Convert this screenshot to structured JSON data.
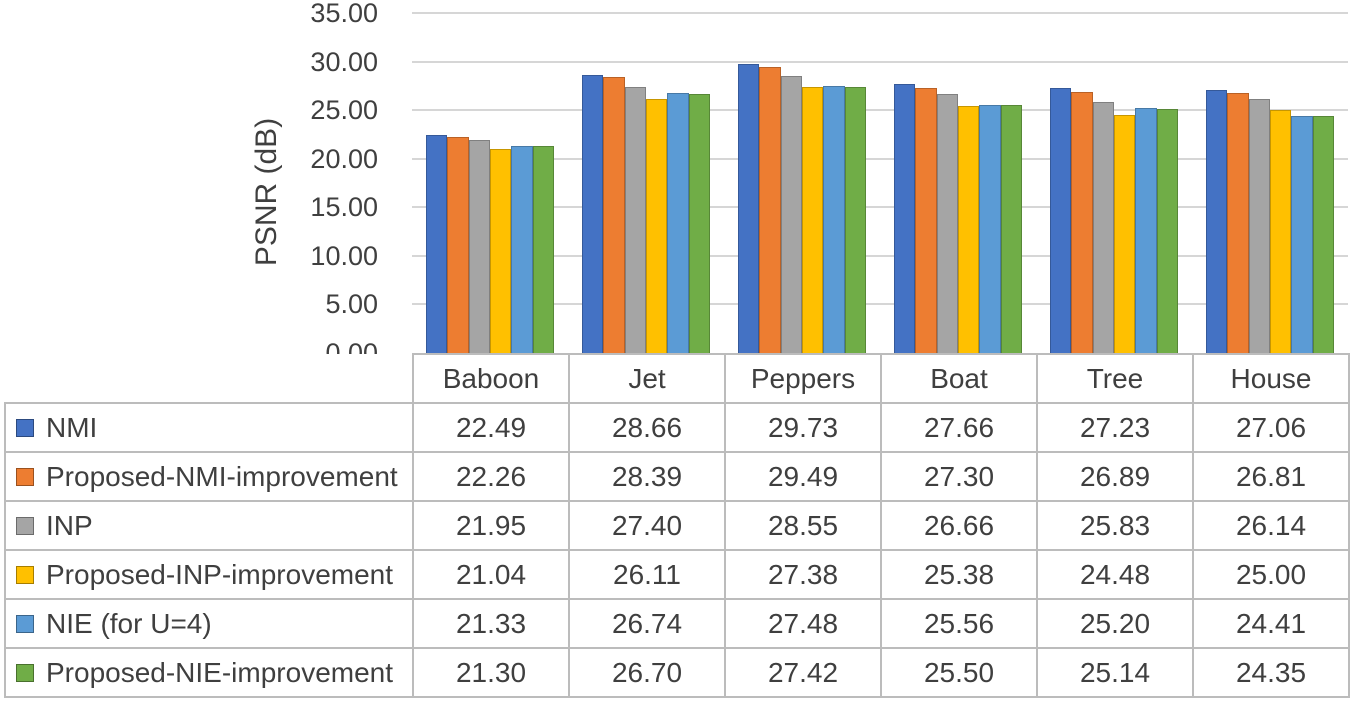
{
  "chart_data": {
    "type": "bar",
    "title": "",
    "xlabel": "",
    "ylabel": "PSNR (dB)",
    "ylim": [
      0,
      35
    ],
    "ytick_step": 5,
    "ytick_labels": [
      "35.00",
      "30.00",
      "25.00",
      "20.00",
      "15.00",
      "10.00",
      "5.00",
      "0.00"
    ],
    "grid": true,
    "legend_position": "table-left",
    "value_decimals": 2,
    "categories": [
      "Baboon",
      "Jet",
      "Peppers",
      "Boat",
      "Tree",
      "House"
    ],
    "series": [
      {
        "name": "NMI",
        "color": "#4472C4",
        "values": [
          22.49,
          28.66,
          29.73,
          27.66,
          27.23,
          27.06
        ]
      },
      {
        "name": "Proposed-NMI-improvement",
        "color": "#ED7D31",
        "values": [
          22.26,
          28.39,
          29.49,
          27.3,
          26.89,
          26.81
        ]
      },
      {
        "name": "INP",
        "color": "#A5A5A5",
        "values": [
          21.95,
          27.4,
          28.55,
          26.66,
          25.83,
          26.14
        ]
      },
      {
        "name": "Proposed-INP-improvement",
        "color": "#FFC000",
        "values": [
          21.04,
          26.11,
          27.38,
          25.38,
          24.48,
          25.0
        ]
      },
      {
        "name": "NIE (for U=4)",
        "color": "#5B9BD5",
        "values": [
          21.33,
          26.74,
          27.48,
          25.56,
          25.2,
          24.41
        ]
      },
      {
        "name": "Proposed-NIE-improvement",
        "color": "#70AD47",
        "values": [
          21.3,
          26.7,
          27.42,
          25.5,
          25.14,
          24.35
        ]
      }
    ]
  }
}
